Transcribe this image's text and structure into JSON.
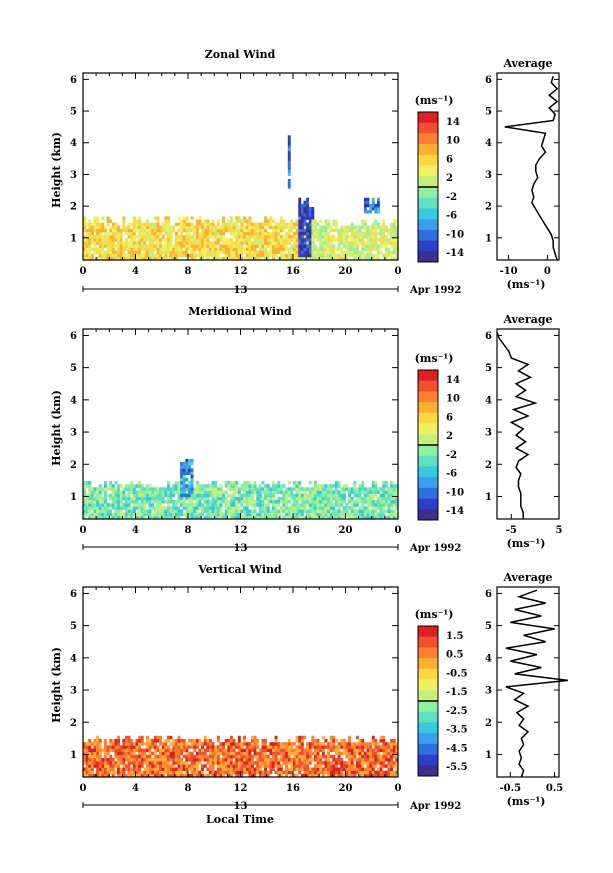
{
  "x_axis_label": "Local Time",
  "panels": [
    {
      "title": "Zonal Wind",
      "ylabel": "Height (km)",
      "y_ticks": [
        "1",
        "2",
        "3",
        "4",
        "5",
        "6"
      ],
      "x_ticks": [
        "0",
        "4",
        "8",
        "12",
        "16",
        "20",
        "0"
      ],
      "day_label": "13",
      "date_label": "Apr 1992",
      "colorbar": {
        "unit": "(ms⁻¹)",
        "ticks": [
          "14",
          "10",
          "6",
          "2",
          "-2",
          "-6",
          "-10",
          "-14"
        ]
      },
      "avg": {
        "title": "Average",
        "y_ticks": [
          "1",
          "2",
          "3",
          "4",
          "5",
          "6"
        ],
        "x_ticks": [
          "-10",
          "0"
        ],
        "unit": "(ms⁻¹)"
      }
    },
    {
      "title": "Meridional Wind",
      "ylabel": "Height (km)",
      "y_ticks": [
        "1",
        "2",
        "3",
        "4",
        "5",
        "6"
      ],
      "x_ticks": [
        "0",
        "4",
        "8",
        "12",
        "16",
        "20",
        "0"
      ],
      "day_label": "13",
      "date_label": "Apr 1992",
      "colorbar": {
        "unit": "(ms⁻¹)",
        "ticks": [
          "14",
          "10",
          "6",
          "2",
          "-2",
          "-6",
          "-10",
          "-14"
        ]
      },
      "avg": {
        "title": "Average",
        "y_ticks": [
          "1",
          "2",
          "3",
          "4",
          "5",
          "6"
        ],
        "x_ticks": [
          "-5",
          "5"
        ],
        "unit": "(ms⁻¹)"
      }
    },
    {
      "title": "Vertical Wind",
      "ylabel": "Height (km)",
      "y_ticks": [
        "1",
        "2",
        "3",
        "4",
        "5",
        "6"
      ],
      "x_ticks": [
        "0",
        "4",
        "8",
        "12",
        "16",
        "20",
        "0"
      ],
      "day_label": "13",
      "date_label": "Apr 1992",
      "colorbar": {
        "unit": "(ms⁻¹)",
        "ticks": [
          "1.5",
          "0.5",
          "-0.5",
          "-1.5",
          "-2.5",
          "-3.5",
          "-4.5",
          "-5.5"
        ]
      },
      "avg": {
        "title": "Average",
        "y_ticks": [
          "1",
          "2",
          "3",
          "4",
          "5",
          "6"
        ],
        "x_ticks": [
          "-0.5",
          "0.5"
        ],
        "unit": "(ms⁻¹)"
      }
    }
  ],
  "colors": {
    "scale": [
      "#3b2f8f",
      "#2b3fc8",
      "#2f6fe0",
      "#3aa0ea",
      "#38c8e0",
      "#5fe0c0",
      "#8ff0a0",
      "#c8f078",
      "#f0f060",
      "#ffd840",
      "#ffb030",
      "#ff8030",
      "#f05030",
      "#e02020"
    ]
  },
  "chart_data": [
    {
      "type": "heatmap",
      "title": "Zonal Wind",
      "xlabel": "",
      "ylabel": "Height (km)",
      "xlim": [
        0,
        24
      ],
      "ylim": [
        0.3,
        6.2
      ],
      "unit": "(ms⁻¹)",
      "color_range": [
        -16,
        16
      ],
      "date": "13 Apr 1992",
      "description_regions": [
        {
          "t0": 0,
          "t1": 17.5,
          "z0": 0.35,
          "z1": 1.6,
          "value": 5
        },
        {
          "t0": 16.5,
          "t1": 17.5,
          "z0": 0.4,
          "z1": 2.2,
          "value": -13
        },
        {
          "t0": 17.5,
          "t1": 24,
          "z0": 0.35,
          "z1": 1.5,
          "value": 2
        },
        {
          "t0": 21.5,
          "t1": 22.5,
          "z0": 1.8,
          "z1": 2.2,
          "value": -10
        },
        {
          "t0": 15.6,
          "t1": 15.8,
          "z0": 2.6,
          "z1": 4.4,
          "value": -10
        }
      ],
      "average_profile": {
        "z": [
          0.3,
          0.5,
          0.7,
          0.9,
          1.1,
          1.3,
          1.5,
          1.7,
          1.9,
          2.1,
          2.3,
          2.5,
          2.7,
          2.9,
          3.1,
          3.3,
          3.5,
          3.7,
          3.9,
          4.1,
          4.3,
          4.5,
          4.7,
          4.9,
          5.1,
          5.3,
          5.5,
          5.7,
          5.9,
          6.1
        ],
        "u": [
          2.5,
          2,
          1.5,
          1.5,
          1,
          0,
          -1,
          -2,
          -3,
          -4,
          -3.5,
          -4,
          -3.5,
          -2.5,
          -3,
          -3,
          -2,
          -0.5,
          -1.5,
          -1,
          -0.5,
          -11,
          1.5,
          2,
          0.5,
          2.5,
          0.5,
          2.5,
          1,
          1.5
        ],
        "xlim": [
          -13,
          3
        ]
      }
    },
    {
      "type": "heatmap",
      "title": "Meridional Wind",
      "xlabel": "",
      "ylabel": "Height (km)",
      "xlim": [
        0,
        24
      ],
      "ylim": [
        0.3,
        6.2
      ],
      "unit": "(ms⁻¹)",
      "color_range": [
        -16,
        16
      ],
      "date": "13 Apr 1992",
      "description_regions": [
        {
          "t0": 0,
          "t1": 24,
          "z0": 0.35,
          "z1": 1.4,
          "value": -2
        },
        {
          "t0": 7.5,
          "t1": 8.3,
          "z0": 1.0,
          "z1": 2.1,
          "value": -8
        }
      ],
      "average_profile": {
        "z": [
          0.3,
          0.5,
          0.7,
          0.9,
          1.1,
          1.3,
          1.5,
          1.7,
          1.9,
          2.1,
          2.3,
          2.5,
          2.7,
          2.9,
          3.1,
          3.3,
          3.5,
          3.7,
          3.9,
          4.1,
          4.3,
          4.5,
          4.7,
          4.9,
          5.1,
          5.3,
          5.5,
          5.7,
          5.9,
          6.1
        ],
        "v": [
          -2.5,
          -2.5,
          -3,
          -3,
          -3,
          -3.5,
          -3.5,
          -3,
          -4,
          -3.5,
          -1.5,
          -4,
          -2,
          -4,
          -2.5,
          -5,
          -1.5,
          -4.5,
          0,
          -4,
          -2,
          -4,
          -1,
          -3.5,
          -1.5,
          -5,
          -5.5,
          -6.5,
          -7.5,
          -8
        ],
        "xlim": [
          -8,
          5
        ]
      }
    },
    {
      "type": "heatmap",
      "title": "Vertical Wind",
      "xlabel": "Local Time",
      "ylabel": "Height (km)",
      "xlim": [
        0,
        24
      ],
      "ylim": [
        0.3,
        6.2
      ],
      "unit": "(ms⁻¹)",
      "color_range": [
        -6,
        2
      ],
      "date": "13 Apr 1992",
      "description_regions": [
        {
          "t0": 0,
          "t1": 24,
          "z0": 0.35,
          "z1": 1.5,
          "value": 0.8
        }
      ],
      "average_profile": {
        "z": [
          0.3,
          0.5,
          0.7,
          0.9,
          1.1,
          1.3,
          1.5,
          1.7,
          1.9,
          2.1,
          2.3,
          2.5,
          2.7,
          2.9,
          3.1,
          3.3,
          3.5,
          3.7,
          3.9,
          4.1,
          4.3,
          4.5,
          4.7,
          4.9,
          5.1,
          5.3,
          5.5,
          5.7,
          5.9,
          6.1
        ],
        "w": [
          -0.25,
          -0.2,
          -0.3,
          -0.25,
          -0.3,
          -0.2,
          -0.25,
          -0.1,
          -0.3,
          -0.2,
          -0.35,
          -0.1,
          -0.4,
          -0.2,
          -0.6,
          0.8,
          -0.4,
          0.2,
          -0.5,
          0.1,
          -0.6,
          0.3,
          -0.2,
          0.5,
          -0.5,
          0.2,
          -0.4,
          0.3,
          -0.3,
          0.1
        ],
        "xlim": [
          -0.8,
          0.6
        ]
      }
    }
  ]
}
